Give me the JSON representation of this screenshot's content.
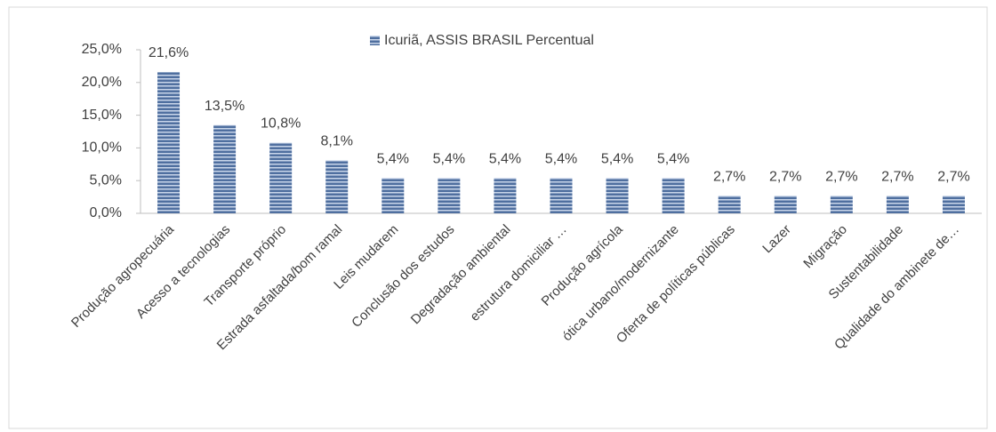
{
  "chart_data": {
    "type": "bar",
    "legend_label": "Icuriã, ASSIS BRASIL Percentual",
    "categories": [
      "Produção agropecuária",
      "Acesso a tecnologias",
      "Transporte próprio",
      "Estrada asfaltada/bom ramal",
      "Leis mudarem",
      "Conclusão dos estudos",
      "Degradação ambiental",
      "estrutura domiciliar …",
      "Produção agrícola",
      "ótica urbano/modernizante",
      "Oferta de políticas públicas",
      "Lazer",
      "Migração",
      "Sustentabilidade",
      "Qualidade do ambinete de…"
    ],
    "values": [
      21.6,
      13.5,
      10.8,
      8.1,
      5.4,
      5.4,
      5.4,
      5.4,
      5.4,
      5.4,
      2.7,
      2.7,
      2.7,
      2.7,
      2.7
    ],
    "value_labels": [
      "21,6%",
      "13,5%",
      "10,8%",
      "8,1%",
      "5,4%",
      "5,4%",
      "5,4%",
      "5,4%",
      "5,4%",
      "5,4%",
      "2,7%",
      "2,7%",
      "2,7%",
      "2,7%",
      "2,7%"
    ],
    "color": "#4f6f9f",
    "ylim": [
      0,
      25
    ],
    "yticks": [
      {
        "value": 0,
        "label": "0,0%"
      },
      {
        "value": 5,
        "label": "5,0%"
      },
      {
        "value": 10,
        "label": "10,0%"
      },
      {
        "value": 15,
        "label": "15,0%"
      },
      {
        "value": 20,
        "label": "20,0%"
      },
      {
        "value": 25,
        "label": "25,0%"
      }
    ],
    "grid": false
  }
}
